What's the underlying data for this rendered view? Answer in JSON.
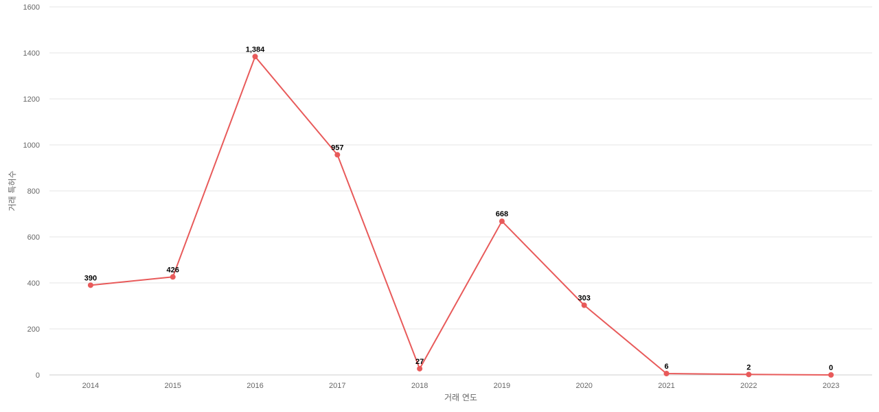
{
  "chart_data": {
    "type": "line",
    "title": "",
    "xlabel": "거래 연도",
    "ylabel": "거래 특허수",
    "categories": [
      "2014",
      "2015",
      "2016",
      "2017",
      "2018",
      "2019",
      "2020",
      "2021",
      "2022",
      "2023"
    ],
    "series": [
      {
        "values": [
          390,
          426,
          1384,
          957,
          27,
          668,
          303,
          6,
          2,
          0
        ],
        "data_labels": [
          "390",
          "426",
          "1,384",
          "957",
          "27",
          "668",
          "303",
          "6",
          "2",
          "0"
        ],
        "color": "#e85a5a"
      }
    ],
    "ylim": [
      0,
      1600
    ],
    "yticks": [
      0,
      200,
      400,
      600,
      800,
      1000,
      1200,
      1400,
      1600
    ],
    "grid": true,
    "legend": "none"
  }
}
